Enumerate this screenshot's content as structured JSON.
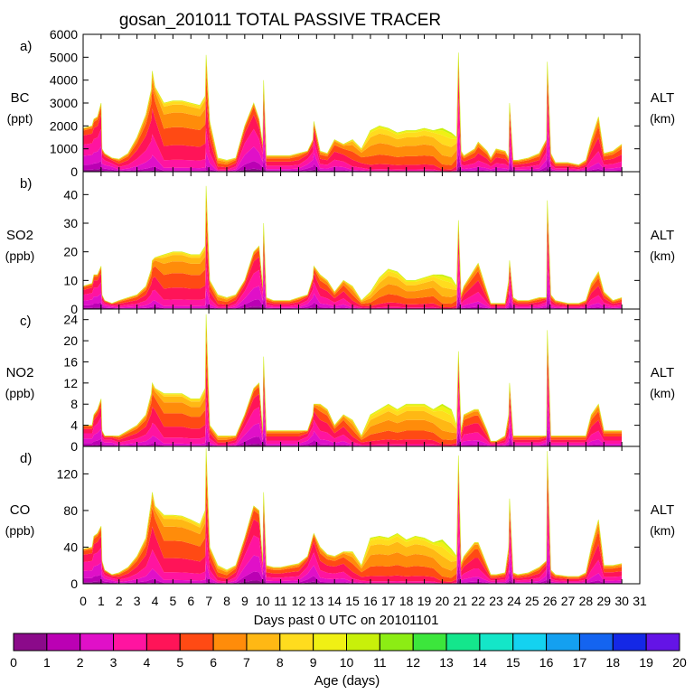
{
  "title": "gosan_201011 TOTAL PASSIVE TRACER",
  "xlabel": "Days past 0 UTC on 20101101",
  "x_ticks": [
    "0",
    "1",
    "2",
    "3",
    "4",
    "5",
    "6",
    "7",
    "8",
    "9",
    "10",
    "11",
    "12",
    "13",
    "14",
    "15",
    "16",
    "17",
    "18",
    "19",
    "20",
    "21",
    "22",
    "23",
    "24",
    "25",
    "26",
    "27",
    "28",
    "29",
    "30",
    "31"
  ],
  "right_label": [
    "ALT",
    "(km)"
  ],
  "colorbar": {
    "label": "Age (days)",
    "ticks": [
      "0",
      "1",
      "2",
      "3",
      "4",
      "5",
      "6",
      "7",
      "8",
      "9",
      "10",
      "11",
      "12",
      "13",
      "14",
      "15",
      "16",
      "17",
      "18",
      "19",
      "20"
    ],
    "colors": [
      "#8b0a8a",
      "#bb00b4",
      "#e010c8",
      "#ff14a0",
      "#ff1458",
      "#ff4a14",
      "#ff8c0a",
      "#ffb814",
      "#ffdc1e",
      "#f0f014",
      "#c8f00a",
      "#8ced14",
      "#3ce63c",
      "#14e68c",
      "#14e6c8",
      "#14d2f0",
      "#14a0f0",
      "#1464f0",
      "#1428e6",
      "#6414e6"
    ]
  },
  "chart_data": [
    {
      "type": "area",
      "panel": "a)",
      "species": "BC",
      "unit": "(ppt)",
      "ylim": [
        0,
        6000
      ],
      "yticks": [
        "0",
        "1000",
        "2000",
        "3000",
        "4000",
        "5000",
        "6000"
      ],
      "x": [
        0,
        0.5,
        0.6,
        0.8,
        1.0,
        1.05,
        1.2,
        1.6,
        2.0,
        2.5,
        3.0,
        3.5,
        3.8,
        3.85,
        4.0,
        4.5,
        5.0,
        5.5,
        6.0,
        6.5,
        6.8,
        6.85,
        7.05,
        7.5,
        8.0,
        8.5,
        9.0,
        9.5,
        9.8,
        10.0,
        10.05,
        10.2,
        10.6,
        11,
        11.5,
        12,
        12.5,
        12.8,
        12.85,
        13.2,
        13.6,
        14.0,
        14.5,
        15.0,
        15.5,
        16.0,
        16.5,
        17.0,
        17.5,
        18.0,
        18.5,
        19.0,
        19.5,
        20.0,
        20.5,
        20.8,
        20.9,
        21.05,
        21.2,
        21.8,
        22.0,
        22.5,
        22.7,
        23.0,
        23.5,
        23.7,
        23.75,
        23.95,
        24.2,
        24.8,
        25.4,
        25.8,
        25.85,
        26.05,
        26.3,
        27.0,
        27.6,
        28.0,
        28.3,
        28.7,
        29.0,
        29.5,
        30.0
      ],
      "total": [
        1900,
        2000,
        2300,
        2400,
        3000,
        1000,
        800,
        600,
        550,
        800,
        1500,
        2500,
        3600,
        4400,
        3700,
        3000,
        3100,
        3100,
        3000,
        2900,
        3300,
        5100,
        2200,
        600,
        500,
        600,
        2000,
        3000,
        2300,
        1200,
        4000,
        700,
        700,
        700,
        700,
        800,
        900,
        1400,
        2200,
        900,
        800,
        1400,
        1200,
        1400,
        1000,
        1800,
        2000,
        1900,
        1700,
        1800,
        1800,
        1900,
        1800,
        1900,
        1700,
        1500,
        5200,
        900,
        700,
        1000,
        1300,
        900,
        600,
        1000,
        900,
        600,
        3000,
        500,
        500,
        600,
        800,
        1400,
        4800,
        800,
        400,
        400,
        300,
        500,
        1400,
        2400,
        800,
        900,
        1200
      ],
      "age_mean": [
        3,
        3,
        3,
        3,
        3,
        3,
        3,
        3,
        4,
        4,
        4,
        4,
        4,
        4,
        4,
        5,
        5,
        5,
        5,
        5,
        5,
        4,
        4,
        5,
        5,
        4,
        3,
        3,
        3,
        3,
        3,
        4,
        4,
        4,
        4,
        4,
        3,
        3,
        3,
        4,
        4,
        4,
        4,
        5,
        5,
        6,
        6,
        6,
        6,
        6,
        6,
        6,
        6,
        7,
        7,
        6,
        3,
        4,
        4,
        4,
        4,
        4,
        4,
        4,
        4,
        4,
        3,
        4,
        4,
        4,
        4,
        3,
        3,
        4,
        4,
        4,
        4,
        4,
        4,
        4,
        4,
        4,
        4
      ]
    },
    {
      "type": "area",
      "panel": "b)",
      "species": "SO2",
      "unit": "(ppb)",
      "ylim": [
        0,
        48
      ],
      "yticks": [
        "0",
        "10",
        "20",
        "30",
        "40"
      ],
      "x": [
        0,
        0.5,
        0.6,
        0.8,
        1.0,
        1.05,
        1.2,
        1.6,
        2.0,
        2.5,
        3.0,
        3.5,
        3.8,
        3.85,
        4.0,
        4.5,
        5.0,
        5.5,
        6.0,
        6.5,
        6.8,
        6.85,
        7.05,
        7.5,
        8.0,
        8.5,
        9.0,
        9.5,
        9.8,
        10.0,
        10.05,
        10.2,
        10.6,
        11,
        11.5,
        12,
        12.5,
        12.8,
        12.85,
        13.2,
        13.6,
        14.0,
        14.5,
        15.0,
        15.5,
        16.0,
        16.5,
        17.0,
        17.5,
        18.0,
        18.5,
        19.0,
        19.5,
        20.0,
        20.5,
        20.8,
        20.9,
        21.05,
        21.2,
        21.8,
        22.0,
        22.5,
        22.7,
        23.0,
        23.5,
        23.7,
        23.75,
        23.95,
        24.2,
        24.8,
        25.4,
        25.8,
        25.85,
        26.05,
        26.3,
        27.0,
        27.6,
        28.0,
        28.3,
        28.7,
        29.0,
        29.5,
        30.0
      ],
      "total": [
        8,
        9,
        12,
        12,
        15,
        5,
        3,
        2,
        3,
        4,
        5,
        8,
        14,
        17,
        18,
        19,
        20,
        20,
        19,
        19,
        22,
        43,
        10,
        5,
        4,
        5,
        10,
        20,
        22,
        8,
        30,
        4,
        3,
        3,
        3,
        4,
        5,
        11,
        15,
        12,
        10,
        6,
        10,
        8,
        3,
        6,
        11,
        14,
        13,
        10,
        10,
        11,
        12,
        12,
        11,
        8,
        31,
        5,
        8,
        14,
        16,
        6,
        2,
        2,
        2,
        10,
        17,
        4,
        3,
        3,
        4,
        4,
        38,
        5,
        3,
        2,
        2,
        3,
        9,
        13,
        6,
        3,
        4
      ],
      "age_mean": [
        3,
        3,
        3,
        3,
        3,
        3,
        3,
        3,
        4,
        4,
        4,
        4,
        4,
        4,
        4,
        5,
        5,
        5,
        5,
        5,
        5,
        4,
        4,
        5,
        5,
        4,
        3,
        3,
        3,
        3,
        3,
        4,
        4,
        4,
        4,
        4,
        3,
        3,
        3,
        4,
        4,
        4,
        4,
        5,
        5,
        6,
        6,
        6,
        6,
        6,
        6,
        6,
        6,
        7,
        7,
        6,
        3,
        4,
        4,
        4,
        4,
        4,
        4,
        4,
        4,
        4,
        3,
        4,
        4,
        4,
        4,
        3,
        3,
        4,
        4,
        4,
        4,
        4,
        4,
        4,
        4,
        4,
        4
      ]
    },
    {
      "type": "area",
      "panel": "c)",
      "species": "NO2",
      "unit": "(ppb)",
      "ylim": [
        0,
        26
      ],
      "yticks": [
        "0",
        "4",
        "8",
        "12",
        "16",
        "20",
        "24"
      ],
      "x": [
        0,
        0.5,
        0.6,
        0.8,
        1.0,
        1.05,
        1.2,
        1.6,
        2.0,
        2.5,
        3.0,
        3.5,
        3.8,
        3.85,
        4.0,
        4.5,
        5.0,
        5.5,
        6.0,
        6.5,
        6.8,
        6.85,
        7.05,
        7.5,
        8.0,
        8.5,
        9.0,
        9.5,
        9.8,
        10.0,
        10.05,
        10.2,
        10.6,
        11,
        11.5,
        12,
        12.5,
        12.8,
        12.85,
        13.2,
        13.6,
        14.0,
        14.5,
        15.0,
        15.5,
        16.0,
        16.5,
        17.0,
        17.5,
        18.0,
        18.5,
        19.0,
        19.5,
        20.0,
        20.5,
        20.8,
        20.9,
        21.05,
        21.2,
        21.8,
        22.0,
        22.5,
        22.7,
        23.0,
        23.5,
        23.7,
        23.75,
        23.95,
        24.2,
        24.8,
        25.4,
        25.8,
        25.85,
        26.05,
        26.3,
        27.0,
        27.6,
        28.0,
        28.3,
        28.7,
        29.0,
        29.5,
        30.0
      ],
      "total": [
        4,
        4,
        6,
        7,
        9,
        3,
        2,
        2,
        2,
        3,
        4,
        6,
        10,
        12,
        11,
        10,
        10,
        10,
        9,
        9,
        11,
        25,
        4,
        2,
        2,
        2,
        6,
        11,
        12,
        3,
        17,
        3,
        3,
        3,
        3,
        3,
        3,
        6,
        8,
        8,
        7,
        4,
        6,
        5,
        2,
        6,
        7,
        8,
        7,
        8,
        8,
        8,
        7,
        8,
        7,
        4,
        18,
        3,
        6,
        7,
        7,
        3,
        1,
        1,
        2,
        6,
        12,
        2,
        2,
        2,
        2,
        2,
        22,
        2,
        2,
        2,
        2,
        2,
        6,
        8,
        3,
        3,
        3
      ],
      "age_mean": [
        3,
        3,
        3,
        3,
        3,
        3,
        3,
        3,
        4,
        4,
        4,
        4,
        4,
        4,
        4,
        5,
        5,
        5,
        5,
        5,
        5,
        4,
        4,
        5,
        5,
        4,
        3,
        3,
        3,
        3,
        3,
        4,
        4,
        4,
        4,
        4,
        3,
        3,
        3,
        4,
        4,
        4,
        4,
        5,
        5,
        6,
        6,
        6,
        6,
        6,
        6,
        6,
        6,
        7,
        7,
        6,
        3,
        4,
        4,
        4,
        4,
        4,
        4,
        4,
        4,
        4,
        3,
        4,
        4,
        4,
        4,
        3,
        3,
        4,
        4,
        4,
        4,
        4,
        4,
        4,
        4,
        4,
        4
      ]
    },
    {
      "type": "area",
      "panel": "d)",
      "species": "CO",
      "unit": "(ppb)",
      "ylim": [
        0,
        150
      ],
      "yticks": [
        "0",
        "40",
        "80",
        "120"
      ],
      "x": [
        0,
        0.5,
        0.6,
        0.8,
        1.0,
        1.05,
        1.2,
        1.6,
        2.0,
        2.5,
        3.0,
        3.5,
        3.8,
        3.85,
        4.0,
        4.5,
        5.0,
        5.5,
        6.0,
        6.5,
        6.8,
        6.85,
        7.05,
        7.5,
        8.0,
        8.5,
        9.0,
        9.5,
        9.8,
        10.0,
        10.05,
        10.2,
        10.6,
        11,
        11.5,
        12,
        12.5,
        12.8,
        12.85,
        13.2,
        13.6,
        14.0,
        14.5,
        15.0,
        15.5,
        16.0,
        16.5,
        17.0,
        17.5,
        18.0,
        18.5,
        19.0,
        19.5,
        20.0,
        20.5,
        20.8,
        20.9,
        21.05,
        21.2,
        21.8,
        22.0,
        22.5,
        22.7,
        23.0,
        23.5,
        23.7,
        23.75,
        23.95,
        24.2,
        24.8,
        25.4,
        25.8,
        25.85,
        26.05,
        26.3,
        27.0,
        27.6,
        28.0,
        28.3,
        28.7,
        29.0,
        29.5,
        30.0
      ],
      "total": [
        38,
        40,
        52,
        55,
        63,
        25,
        15,
        10,
        12,
        18,
        30,
        50,
        90,
        100,
        85,
        75,
        75,
        74,
        70,
        65,
        80,
        148,
        40,
        20,
        15,
        20,
        50,
        85,
        80,
        25,
        100,
        20,
        18,
        18,
        20,
        22,
        30,
        52,
        55,
        40,
        32,
        30,
        35,
        35,
        20,
        50,
        52,
        50,
        55,
        48,
        52,
        50,
        45,
        48,
        38,
        30,
        140,
        22,
        30,
        45,
        45,
        20,
        10,
        10,
        12,
        40,
        93,
        12,
        10,
        12,
        18,
        25,
        145,
        15,
        10,
        8,
        8,
        12,
        40,
        70,
        20,
        20,
        22
      ],
      "age_mean": [
        3,
        3,
        3,
        3,
        3,
        3,
        3,
        3,
        4,
        4,
        4,
        4,
        4,
        4,
        4,
        5,
        5,
        5,
        5,
        5,
        5,
        4,
        4,
        5,
        5,
        4,
        3,
        3,
        3,
        3,
        3,
        4,
        4,
        4,
        4,
        4,
        3,
        3,
        3,
        4,
        4,
        4,
        4,
        5,
        5,
        6,
        6,
        6,
        6,
        6,
        6,
        6,
        6,
        7,
        7,
        6,
        3,
        4,
        4,
        4,
        4,
        4,
        4,
        4,
        4,
        4,
        3,
        4,
        4,
        4,
        4,
        3,
        3,
        4,
        4,
        4,
        4,
        4,
        4,
        4,
        4,
        4,
        4
      ]
    }
  ]
}
